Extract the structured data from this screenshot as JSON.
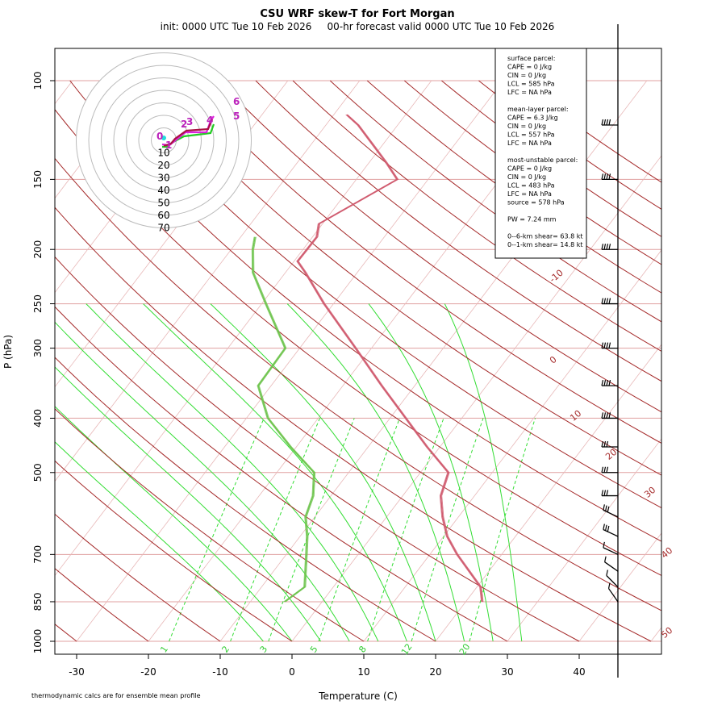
{
  "title": "CSU WRF skew-T for Fort Morgan",
  "subtitle": "init: 0000 UTC Tue 10 Feb 2026     00-hr forecast valid 0000 UTC Tue 10 Feb 2026",
  "footnote": "thermodynamic calcs are for ensemble mean profile",
  "stats": [
    "surface parcel:",
    "CAPE = 0 J/kg",
    "CIN = 0 J/kg",
    "LCL = 585 hPa",
    "LFC = NA hPa",
    "",
    "mean-layer parcel:",
    "CAPE = 6.3 J/kg",
    "CIN = 0 J/kg",
    "LCL = 557 hPa",
    "LFC = NA hPa",
    "",
    "most-unstable parcel:",
    "CAPE = 0 J/kg",
    "CIN = 0 J/kg",
    "LCL = 483 hPa",
    "LFC = NA hPa",
    "source = 578 hPa",
    "",
    "PW =  7.24 mm",
    "",
    "0--6-km shear= 63.8 kt",
    "0--1-km shear= 14.8 kt"
  ],
  "hodograph": {
    "ring_labels": [
      "10",
      "20",
      "30",
      "40",
      "50",
      "60",
      "70"
    ],
    "height_labels": [
      "0",
      "1",
      "2",
      "3",
      "4",
      "5",
      "6"
    ]
  },
  "mixing_ratio_labels": [
    "1",
    "2",
    "3",
    "5",
    "8",
    "12",
    "20"
  ],
  "dry_adiabat_labels": [
    "-10",
    "0",
    "10",
    "20",
    "30",
    "40",
    "50"
  ],
  "chart_data": {
    "type": "line",
    "title": "CSU WRF skew-T for Fort Morgan",
    "xlabel": "Temperature (C)",
    "ylabel": "P (hPa)",
    "xlim": [
      -33,
      52
    ],
    "ylim": [
      1000,
      100
    ],
    "y_scale": "log-pressure",
    "x_ticks": [
      -30,
      -20,
      -10,
      0,
      10,
      20,
      30,
      40
    ],
    "y_ticks": [
      100,
      150,
      200,
      250,
      300,
      400,
      500,
      700,
      850,
      1000
    ],
    "grid": true,
    "series": [
      {
        "color": "#d05a6e",
        "points": [
          [
            850,
            22.3
          ],
          [
            800,
            20.5
          ],
          [
            700,
            13.8
          ],
          [
            650,
            10.5
          ],
          [
            600,
            7.8
          ],
          [
            550,
            5.3
          ],
          [
            500,
            3.9
          ],
          [
            450,
            -1.8
          ],
          [
            400,
            -7.8
          ],
          [
            350,
            -14.6
          ],
          [
            300,
            -22.2
          ],
          [
            250,
            -31.3
          ],
          [
            220,
            -37.2
          ],
          [
            210,
            -39.5
          ],
          [
            190,
            -39.4
          ],
          [
            180,
            -40.5
          ],
          [
            150,
            -34.3
          ],
          [
            140,
            -37.6
          ],
          [
            130,
            -41.4
          ],
          [
            120,
            -45.5
          ],
          [
            115,
            -48.2
          ]
        ]
      },
      {
        "color": "#6ec44e",
        "points": [
          [
            850,
            -5.2
          ],
          [
            800,
            -4.0
          ],
          [
            700,
            -7.2
          ],
          [
            650,
            -9.0
          ],
          [
            600,
            -11.3
          ],
          [
            550,
            -12.5
          ],
          [
            500,
            -14.8
          ],
          [
            450,
            -20.8
          ],
          [
            400,
            -27.0
          ],
          [
            350,
            -31.8
          ],
          [
            300,
            -32.0
          ],
          [
            250,
            -39.4
          ],
          [
            220,
            -44.5
          ],
          [
            200,
            -47.0
          ],
          [
            190,
            -48.0
          ]
        ]
      }
    ],
    "wind_barb_levels_hPa": [
      850,
      800,
      750,
      700,
      650,
      600,
      550,
      500,
      450,
      400,
      350,
      300,
      250,
      200,
      150,
      120
    ]
  }
}
